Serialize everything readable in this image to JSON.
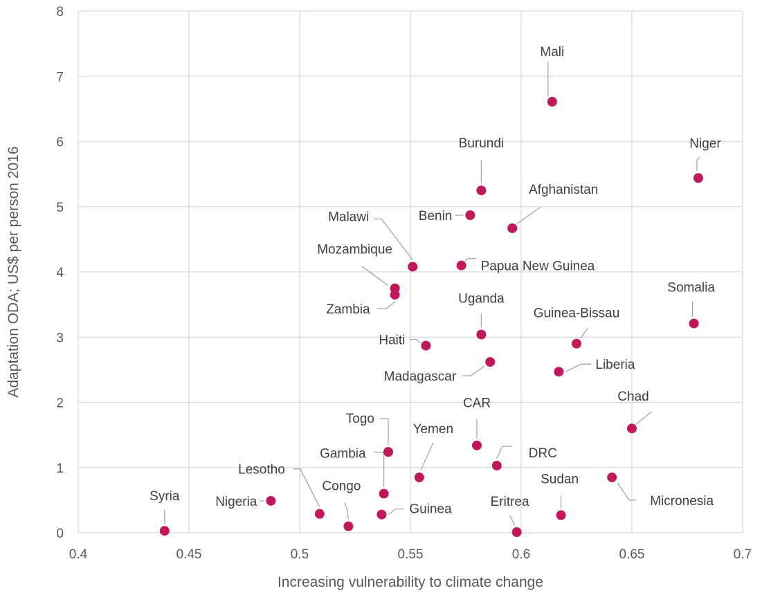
{
  "chart_data": {
    "type": "scatter",
    "title": "",
    "xlabel": "Increasing vulnerability to climate change",
    "ylabel": "Adaptation ODA; US$ per person 2016",
    "xlim": [
      0.4,
      0.7
    ],
    "ylim": [
      0,
      8
    ],
    "x_ticks": [
      "0.4",
      "0.45",
      "0.5",
      "0.55",
      "0.6",
      "0.65",
      "0.7"
    ],
    "y_ticks": [
      "0",
      "1",
      "2",
      "3",
      "4",
      "5",
      "6",
      "7",
      "8"
    ],
    "grid": true,
    "legend": "none",
    "marker_color": "#c0185a",
    "points": [
      {
        "label": "Mali",
        "x": 0.614,
        "y": 6.61
      },
      {
        "label": "Niger",
        "x": 0.68,
        "y": 5.44
      },
      {
        "label": "Burundi",
        "x": 0.582,
        "y": 5.25
      },
      {
        "label": "Benin",
        "x": 0.577,
        "y": 4.87
      },
      {
        "label": "Afghanistan",
        "x": 0.596,
        "y": 4.67
      },
      {
        "label": "Malawi",
        "x": 0.551,
        "y": 4.08
      },
      {
        "label": "Papua New Guinea",
        "x": 0.573,
        "y": 4.1
      },
      {
        "label": "Mozambique",
        "x": 0.543,
        "y": 3.75
      },
      {
        "label": "Zambia",
        "x": 0.543,
        "y": 3.65
      },
      {
        "label": "Uganda",
        "x": 0.582,
        "y": 3.04
      },
      {
        "label": "Somalia",
        "x": 0.678,
        "y": 3.21
      },
      {
        "label": "Guinea-Bissau",
        "x": 0.625,
        "y": 2.9
      },
      {
        "label": "Haiti",
        "x": 0.557,
        "y": 2.87
      },
      {
        "label": "Madagascar",
        "x": 0.586,
        "y": 2.62
      },
      {
        "label": "Liberia",
        "x": 0.617,
        "y": 2.47
      },
      {
        "label": "Chad",
        "x": 0.65,
        "y": 1.6
      },
      {
        "label": "Togo",
        "x": 0.54,
        "y": 1.24
      },
      {
        "label": "CAR",
        "x": 0.58,
        "y": 1.34
      },
      {
        "label": "DRC",
        "x": 0.589,
        "y": 1.03
      },
      {
        "label": "Yemen",
        "x": 0.554,
        "y": 0.85
      },
      {
        "label": "Gambia",
        "x": 0.538,
        "y": 0.6
      },
      {
        "label": "Micronesia",
        "x": 0.641,
        "y": 0.85
      },
      {
        "label": "Lesotho",
        "x": 0.509,
        "y": 0.29
      },
      {
        "label": "Nigeria",
        "x": 0.487,
        "y": 0.49
      },
      {
        "label": "Congo",
        "x": 0.522,
        "y": 0.1
      },
      {
        "label": "Guinea",
        "x": 0.537,
        "y": 0.28
      },
      {
        "label": "Sudan",
        "x": 0.618,
        "y": 0.27
      },
      {
        "label": "Eritrea",
        "x": 0.598,
        "y": 0.01
      },
      {
        "label": "Syria",
        "x": 0.439,
        "y": 0.03
      }
    ]
  }
}
